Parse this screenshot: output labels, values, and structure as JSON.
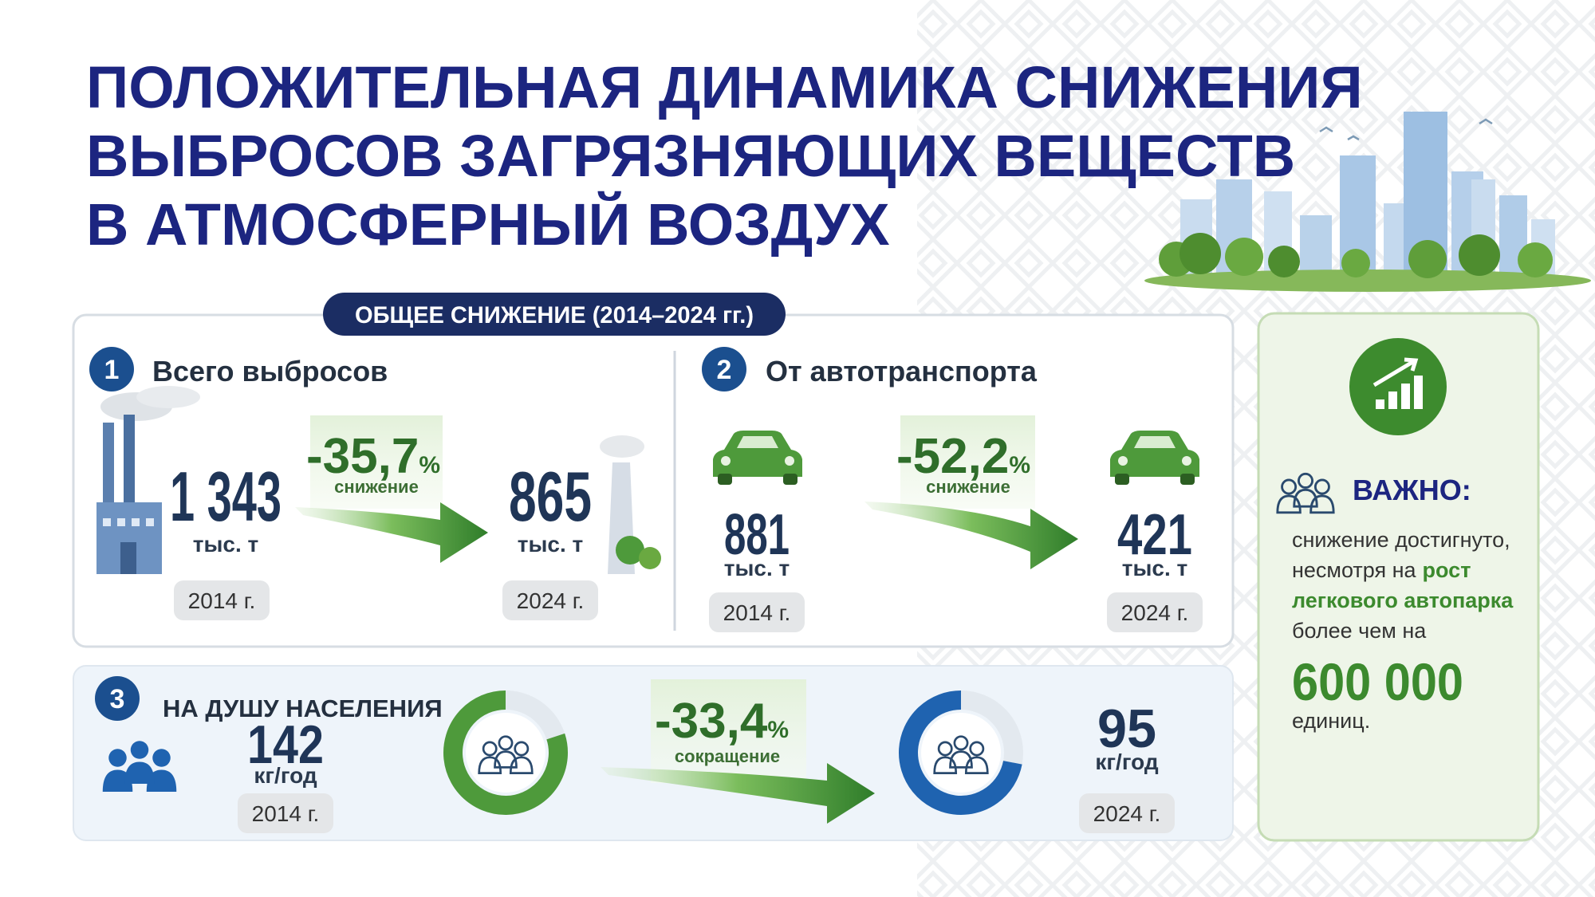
{
  "header": {
    "title_lines": [
      "ПОЛОЖИТЕЛЬНАЯ ДИНАМИКА СНИЖЕНИЯ",
      "ВЫБРОСОВ ЗАГРЯЗНЯЮЩИХ ВЕЩЕСТВ",
      "В АТМОСФЕРНЫЙ ВОЗДУХ"
    ]
  },
  "summary": {
    "badge": "ОБЩЕЕ СНИЖЕНИЕ (2014–2024 гг.)",
    "sections": [
      {
        "number": "1",
        "heading": "Всего выбросов",
        "from": {
          "value": "1 343",
          "unit": "тыс. т",
          "year": "2014 г."
        },
        "change": {
          "value": "-35,7",
          "unit": "%",
          "label": "снижение"
        },
        "to": {
          "value": "865",
          "unit": "тыс. т",
          "year": "2024 г."
        }
      },
      {
        "number": "2",
        "heading": "От автотранспорта",
        "from": {
          "value": "881",
          "unit": "тыс. т",
          "year": "2014 г."
        },
        "change": {
          "value": "-52,2",
          "unit": "%",
          "label": "снижение"
        },
        "to": {
          "value": "421",
          "unit": "тыс. т",
          "year": "2024 г."
        }
      },
      {
        "number": "3",
        "heading": "НА ДУШУ НАСЕЛЕНИЯ",
        "from": {
          "value": "142",
          "unit": "кг/год",
          "year": "2014 г."
        },
        "change": {
          "value": "-33,4",
          "unit": "%",
          "label": "сокращение"
        },
        "to": {
          "value": "95",
          "unit": "кг/год",
          "year": "2024 г."
        }
      }
    ]
  },
  "note": {
    "heading": "ВАЖНО:",
    "lines": [
      [
        {
          "text": "снижение достигнуто,"
        }
      ],
      [
        {
          "text": "несмотря на"
        },
        {
          "text": "рост",
          "highlight": true
        }
      ],
      [
        {
          "text": "легкового автопарка",
          "highlight": true
        }
      ],
      [
        {
          "text": "более чем на"
        }
      ]
    ],
    "number": "600 000",
    "unit": "единиц."
  }
}
